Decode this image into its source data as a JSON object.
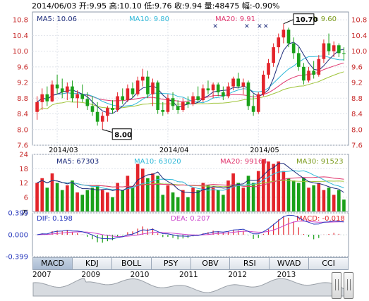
{
  "header": {
    "date": "2014/06/03",
    "open": "开:9.95",
    "high": "高:10.10",
    "low": "低:9.76",
    "close": "收:9.94",
    "volume": "量:48475",
    "change": "幅:-0.90%"
  },
  "price_panel": {
    "ma5": "MA5: 10.06",
    "ma10": "MA10: 9.80",
    "ma20": "MA20: 9.91",
    "ma30": "MA30: 9.60",
    "y_ticks": [
      "10.8",
      "10.4",
      "10.0",
      "9.6",
      "9.2",
      "8.8",
      "8.4",
      "8.0",
      "7.6"
    ],
    "x_ticks": [
      "2014/03",
      "2014/04",
      "2014/05"
    ],
    "high_callout": "10.70",
    "low_callout": "8.00"
  },
  "volume_panel": {
    "ma5": "MA5: 67303",
    "ma10": "MA10: 63020",
    "ma20": "MA20: 99164",
    "ma30": "MA30: 91523",
    "y_ticks": [
      "24",
      "18",
      "12",
      "6"
    ],
    "unit": "万"
  },
  "macd_panel": {
    "dif": "DIF: 0.198",
    "dea": "DEA: 0.207",
    "macd": "MACD: -0.018",
    "y_ticks": [
      "0.399",
      "0.000",
      "-0.399"
    ]
  },
  "tabs": [
    "MACD",
    "KDJ",
    "BOLL",
    "PSY",
    "OBV",
    "RSI",
    "WVAD",
    "CCI"
  ],
  "active_tab": "MACD",
  "years": [
    "2007",
    "2009",
    "2010",
    "2011",
    "2012",
    "2013"
  ],
  "colors": {
    "up": "#e3242b",
    "down": "#1aa11a",
    "ma5": "#1b2a7a",
    "ma10": "#2fb8d8",
    "ma20": "#e0366e",
    "ma30": "#9fc43a",
    "dif": "#2233bb",
    "dea": "#cc44cc"
  },
  "chart_data": {
    "type": "candlestick",
    "candles": [
      {
        "o": 8.45,
        "h": 8.85,
        "l": 8.25,
        "c": 8.7,
        "v": 12
      },
      {
        "o": 8.7,
        "h": 9.05,
        "l": 8.5,
        "c": 8.9,
        "v": 14
      },
      {
        "o": 8.9,
        "h": 9.1,
        "l": 8.6,
        "c": 8.72,
        "v": 10
      },
      {
        "o": 8.72,
        "h": 9.25,
        "l": 8.7,
        "c": 9.15,
        "v": 16
      },
      {
        "o": 9.15,
        "h": 9.4,
        "l": 8.9,
        "c": 9.05,
        "v": 12
      },
      {
        "o": 9.05,
        "h": 9.3,
        "l": 8.8,
        "c": 8.95,
        "v": 9
      },
      {
        "o": 8.95,
        "h": 9.2,
        "l": 8.75,
        "c": 9.1,
        "v": 11
      },
      {
        "o": 9.1,
        "h": 9.25,
        "l": 8.7,
        "c": 8.8,
        "v": 13
      },
      {
        "o": 8.8,
        "h": 9.0,
        "l": 8.55,
        "c": 8.9,
        "v": 8
      },
      {
        "o": 8.9,
        "h": 9.15,
        "l": 8.7,
        "c": 8.78,
        "v": 7
      },
      {
        "o": 8.78,
        "h": 8.95,
        "l": 8.5,
        "c": 8.6,
        "v": 9
      },
      {
        "o": 8.6,
        "h": 8.85,
        "l": 8.35,
        "c": 8.45,
        "v": 10
      },
      {
        "o": 8.45,
        "h": 8.7,
        "l": 8.1,
        "c": 8.2,
        "v": 11
      },
      {
        "o": 8.2,
        "h": 8.45,
        "l": 8.0,
        "c": 8.35,
        "v": 9
      },
      {
        "o": 8.35,
        "h": 8.6,
        "l": 8.2,
        "c": 8.55,
        "v": 8
      },
      {
        "o": 8.55,
        "h": 8.75,
        "l": 8.4,
        "c": 8.5,
        "v": 6
      },
      {
        "o": 8.5,
        "h": 8.95,
        "l": 8.45,
        "c": 8.85,
        "v": 12
      },
      {
        "o": 8.85,
        "h": 9.05,
        "l": 8.65,
        "c": 8.75,
        "v": 9
      },
      {
        "o": 8.75,
        "h": 9.15,
        "l": 8.7,
        "c": 9.05,
        "v": 15
      },
      {
        "o": 9.05,
        "h": 9.2,
        "l": 8.8,
        "c": 8.9,
        "v": 10
      },
      {
        "o": 8.9,
        "h": 9.35,
        "l": 8.85,
        "c": 9.25,
        "v": 20
      },
      {
        "o": 9.25,
        "h": 9.55,
        "l": 9.1,
        "c": 9.35,
        "v": 18
      },
      {
        "o": 9.35,
        "h": 9.5,
        "l": 8.8,
        "c": 8.9,
        "v": 14
      },
      {
        "o": 8.9,
        "h": 9.3,
        "l": 8.6,
        "c": 9.2,
        "v": 16
      },
      {
        "o": 9.2,
        "h": 9.25,
        "l": 8.4,
        "c": 8.5,
        "v": 15
      },
      {
        "o": 8.5,
        "h": 8.7,
        "l": 8.35,
        "c": 8.45,
        "v": 7
      },
      {
        "o": 8.45,
        "h": 8.9,
        "l": 8.4,
        "c": 8.8,
        "v": 11
      },
      {
        "o": 8.8,
        "h": 8.95,
        "l": 8.5,
        "c": 8.6,
        "v": 8
      },
      {
        "o": 8.6,
        "h": 8.75,
        "l": 8.4,
        "c": 8.5,
        "v": 6
      },
      {
        "o": 8.5,
        "h": 8.8,
        "l": 8.45,
        "c": 8.7,
        "v": 9
      },
      {
        "o": 8.7,
        "h": 8.85,
        "l": 8.55,
        "c": 8.65,
        "v": 6
      },
      {
        "o": 8.65,
        "h": 8.95,
        "l": 8.6,
        "c": 8.85,
        "v": 10
      },
      {
        "o": 8.85,
        "h": 9.1,
        "l": 8.7,
        "c": 8.75,
        "v": 9
      },
      {
        "o": 8.75,
        "h": 9.15,
        "l": 8.7,
        "c": 9.05,
        "v": 12
      },
      {
        "o": 9.05,
        "h": 9.25,
        "l": 8.9,
        "c": 9.0,
        "v": 11
      },
      {
        "o": 9.0,
        "h": 9.2,
        "l": 8.8,
        "c": 9.15,
        "v": 10
      },
      {
        "o": 9.15,
        "h": 9.2,
        "l": 8.85,
        "c": 8.95,
        "v": 9
      },
      {
        "o": 8.95,
        "h": 9.1,
        "l": 8.75,
        "c": 8.85,
        "v": 7
      },
      {
        "o": 8.85,
        "h": 9.2,
        "l": 8.8,
        "c": 9.1,
        "v": 13
      },
      {
        "o": 9.1,
        "h": 9.35,
        "l": 9.0,
        "c": 9.3,
        "v": 16
      },
      {
        "o": 9.3,
        "h": 9.45,
        "l": 9.05,
        "c": 9.1,
        "v": 12
      },
      {
        "o": 9.1,
        "h": 9.3,
        "l": 8.9,
        "c": 9.2,
        "v": 10
      },
      {
        "o": 9.2,
        "h": 9.25,
        "l": 8.5,
        "c": 8.6,
        "v": 15
      },
      {
        "o": 8.6,
        "h": 8.9,
        "l": 8.35,
        "c": 8.45,
        "v": 12
      },
      {
        "o": 8.45,
        "h": 8.95,
        "l": 8.4,
        "c": 8.9,
        "v": 17
      },
      {
        "o": 8.9,
        "h": 9.5,
        "l": 8.85,
        "c": 9.4,
        "v": 22
      },
      {
        "o": 9.4,
        "h": 9.8,
        "l": 9.3,
        "c": 9.7,
        "v": 21
      },
      {
        "o": 9.7,
        "h": 10.2,
        "l": 9.6,
        "c": 10.1,
        "v": 20
      },
      {
        "o": 10.1,
        "h": 10.45,
        "l": 9.95,
        "c": 10.35,
        "v": 21
      },
      {
        "o": 10.35,
        "h": 10.7,
        "l": 10.2,
        "c": 10.55,
        "v": 17
      },
      {
        "o": 10.55,
        "h": 10.6,
        "l": 10.1,
        "c": 10.2,
        "v": 14
      },
      {
        "o": 10.2,
        "h": 10.35,
        "l": 9.8,
        "c": 9.95,
        "v": 13
      },
      {
        "o": 9.95,
        "h": 10.1,
        "l": 9.5,
        "c": 9.6,
        "v": 12
      },
      {
        "o": 9.6,
        "h": 9.7,
        "l": 9.15,
        "c": 9.25,
        "v": 14
      },
      {
        "o": 9.25,
        "h": 9.6,
        "l": 9.2,
        "c": 9.5,
        "v": 10
      },
      {
        "o": 9.5,
        "h": 9.75,
        "l": 9.3,
        "c": 9.4,
        "v": 11
      },
      {
        "o": 9.4,
        "h": 9.9,
        "l": 9.35,
        "c": 9.8,
        "v": 12
      },
      {
        "o": 9.8,
        "h": 10.3,
        "l": 9.7,
        "c": 10.2,
        "v": 9
      },
      {
        "o": 10.2,
        "h": 10.45,
        "l": 9.9,
        "c": 10.0,
        "v": 10
      },
      {
        "o": 10.0,
        "h": 10.25,
        "l": 9.85,
        "c": 10.15,
        "v": 7
      },
      {
        "o": 10.15,
        "h": 10.2,
        "l": 9.85,
        "c": 9.95,
        "v": 9
      },
      {
        "o": 9.95,
        "h": 10.1,
        "l": 9.76,
        "c": 9.94,
        "v": 5
      }
    ],
    "price_range": [
      7.6,
      11.0
    ],
    "volume_range": [
      0,
      24
    ],
    "macd_range": [
      -0.399,
      0.399
    ]
  }
}
